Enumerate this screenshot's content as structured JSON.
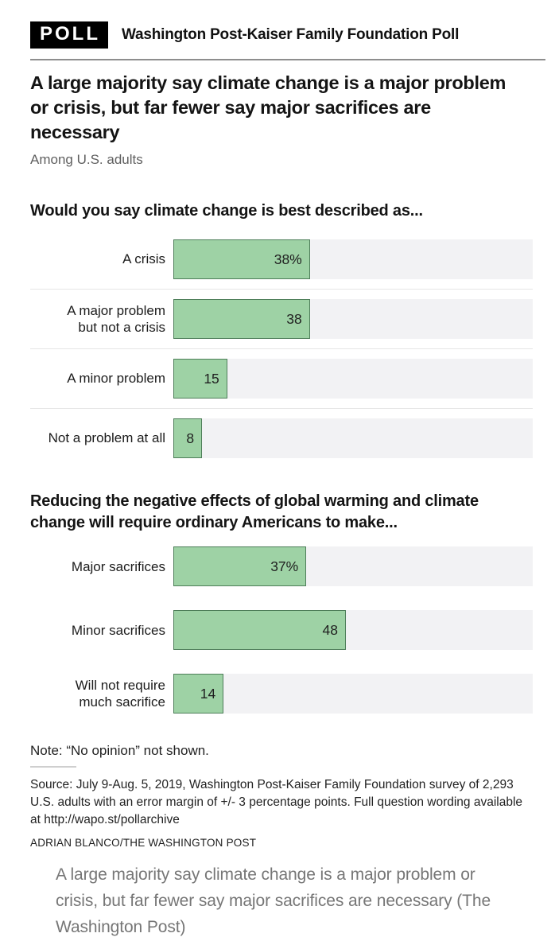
{
  "header": {
    "badge": "POLL",
    "brand": "Washington Post-Kaiser Family Foundation Poll"
  },
  "headline": "A large majority say climate change is a major problem or crisis, but far fewer say major sacrifices are necessary",
  "subtitle": "Among U.S. adults",
  "colors": {
    "bar_fill": "#9ed2a5",
    "bar_border": "#4e7e59",
    "bar_track": "#f2f2f4",
    "badge_bg": "#000000",
    "caption_text": "#767676"
  },
  "chart_data": [
    {
      "type": "bar",
      "orientation": "horizontal",
      "title": "Would you say climate change is best described as...",
      "categories": [
        "A crisis",
        "A major problem\nbut not a crisis",
        "A minor problem",
        "Not a problem at all"
      ],
      "values": [
        38,
        38,
        15,
        8
      ],
      "value_labels": [
        "38%",
        "38",
        "15",
        "8"
      ],
      "xlim": [
        0,
        100
      ],
      "grid": false,
      "legend": false,
      "row_dividers": true
    },
    {
      "type": "bar",
      "orientation": "horizontal",
      "title": "Reducing the negative effects of global warming and climate change will require ordinary Americans to make...",
      "categories": [
        "Major sacrifices",
        "Minor sacrifices",
        "Will not require\nmuch sacrifice"
      ],
      "values": [
        37,
        48,
        14
      ],
      "value_labels": [
        "37%",
        "48",
        "14"
      ],
      "xlim": [
        0,
        100
      ],
      "grid": false,
      "legend": false,
      "row_dividers": false
    }
  ],
  "note": "Note: “No opinion” not shown.",
  "source": "Source: July 9-Aug. 5, 2019, Washington Post-Kaiser Family Foundation survey of 2,293 U.S. adults with an error margin of +/- 3 percentage points. Full question wording available at http://wapo.st/pollarchive",
  "credit": "ADRIAN BLANCO/THE WASHINGTON POST",
  "caption": "A large majority say climate change is a major problem or crisis, but far fewer say major sacrifices are necessary (The Washington Post)"
}
